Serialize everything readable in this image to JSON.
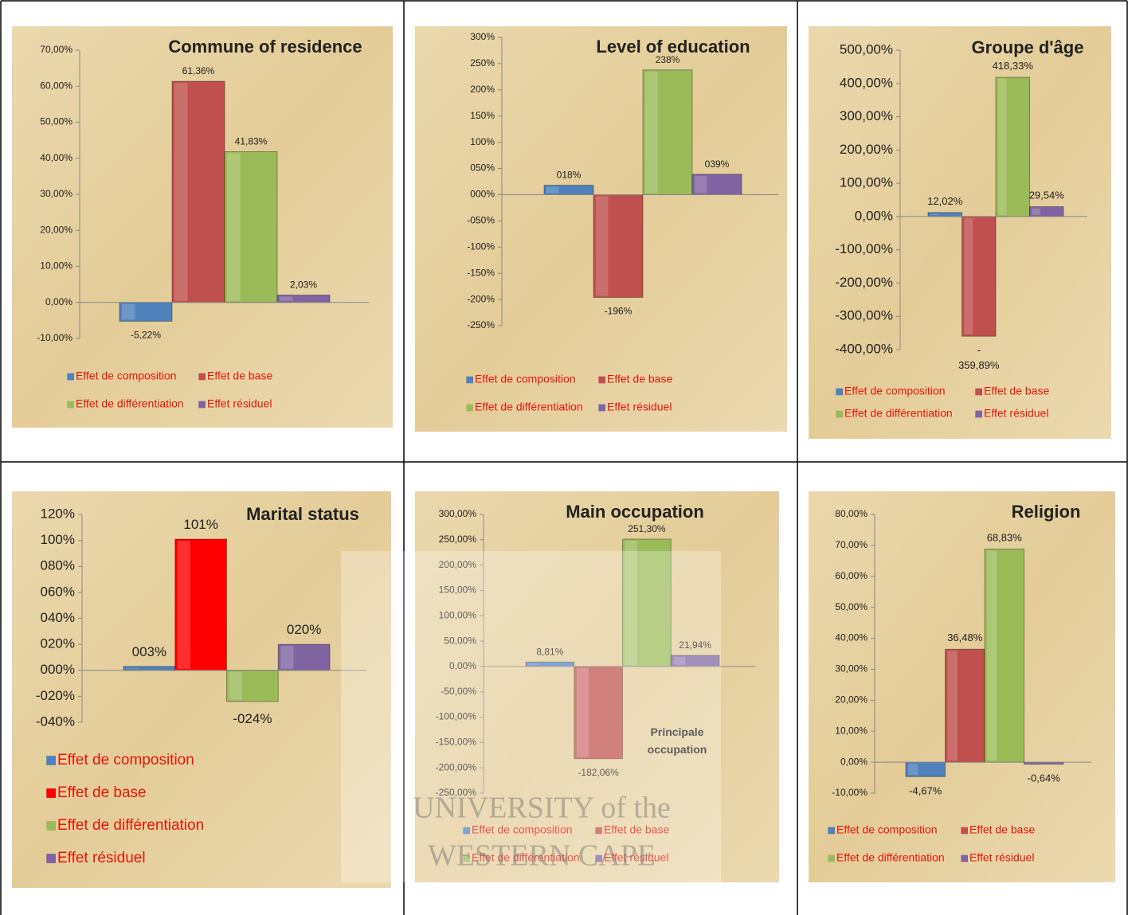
{
  "chart_data": [
    {
      "type": "bar",
      "title": "Commune of residence",
      "categories": [
        null
      ],
      "legend": "bottom",
      "ylim": [
        -10,
        70
      ],
      "yticks": [
        {
          "value": -10,
          "label": "-10,00%"
        },
        {
          "value": 0,
          "label": "0,00%"
        },
        {
          "value": 10,
          "label": "10,00%"
        },
        {
          "value": 20,
          "label": "20,00%"
        },
        {
          "value": 30,
          "label": "30,00%"
        },
        {
          "value": 40,
          "label": "40,00%"
        },
        {
          "value": 50,
          "label": "50,00%"
        },
        {
          "value": 60,
          "label": "60,00%"
        },
        {
          "value": 70,
          "label": "70,00%"
        }
      ],
      "series": [
        {
          "name": "Effet de composition",
          "color": "#4f81bd",
          "values": [
            -5.22
          ],
          "value_labels": [
            "-5,22%"
          ]
        },
        {
          "name": "Effet de base",
          "color": "#c0504d",
          "values": [
            61.36
          ],
          "value_labels": [
            "61,36%"
          ]
        },
        {
          "name": "Effet de différentiation",
          "color": "#9bbb59",
          "values": [
            41.83
          ],
          "value_labels": [
            "41,83%"
          ]
        },
        {
          "name": "Effet résiduel",
          "color": "#8064a2",
          "values": [
            2.03
          ],
          "value_labels": [
            "2,03%"
          ]
        }
      ]
    },
    {
      "type": "bar",
      "title": "Level of education",
      "categories": [
        null
      ],
      "legend": "bottom",
      "ylim": [
        -250,
        300
      ],
      "yticks": [
        {
          "value": -250,
          "label": "-250%"
        },
        {
          "value": -200,
          "label": "-200%"
        },
        {
          "value": -150,
          "label": "-150%"
        },
        {
          "value": -100,
          "label": "-100%"
        },
        {
          "value": -50,
          "label": "-050%"
        },
        {
          "value": 0,
          "label": "000%"
        },
        {
          "value": 50,
          "label": "050%"
        },
        {
          "value": 100,
          "label": "100%"
        },
        {
          "value": 150,
          "label": "150%"
        },
        {
          "value": 200,
          "label": "200%"
        },
        {
          "value": 250,
          "label": "250%"
        },
        {
          "value": 300,
          "label": "300%"
        }
      ],
      "series": [
        {
          "name": "Effet de composition",
          "color": "#4f81bd",
          "values": [
            18
          ],
          "value_labels": [
            "018%"
          ]
        },
        {
          "name": "Effet de base",
          "color": "#c0504d",
          "values": [
            -196
          ],
          "value_labels": [
            "-196%"
          ]
        },
        {
          "name": "Effet de différentiation",
          "color": "#9bbb59",
          "values": [
            238
          ],
          "value_labels": [
            "238%"
          ]
        },
        {
          "name": "Effet résiduel",
          "color": "#8064a2",
          "values": [
            39
          ],
          "value_labels": [
            "039%"
          ]
        }
      ]
    },
    {
      "type": "bar",
      "title": "Groupe d'âge",
      "categories": [
        null
      ],
      "legend": "bottom",
      "ylim": [
        -400,
        500
      ],
      "yticks": [
        {
          "value": -400,
          "label": "-400,00%"
        },
        {
          "value": -300,
          "label": "-300,00%"
        },
        {
          "value": -200,
          "label": "-200,00%"
        },
        {
          "value": -100,
          "label": "-100,00%"
        },
        {
          "value": 0,
          "label": "0,00%"
        },
        {
          "value": 100,
          "label": "100,00%"
        },
        {
          "value": 200,
          "label": "200,00%"
        },
        {
          "value": 300,
          "label": "300,00%"
        },
        {
          "value": 400,
          "label": "400,00%"
        },
        {
          "value": 500,
          "label": "500,00%"
        }
      ],
      "series": [
        {
          "name": "Effet de composition",
          "color": "#4f81bd",
          "values": [
            12.02
          ],
          "value_labels": [
            "12,02%"
          ]
        },
        {
          "name": "Effet de base",
          "color": "#c0504d",
          "values": [
            -359.89
          ],
          "value_labels": [
            "-\n359,89%"
          ]
        },
        {
          "name": "Effet de différentiation",
          "color": "#9bbb59",
          "values": [
            418.33
          ],
          "value_labels": [
            "418,33%"
          ]
        },
        {
          "name": "Effet résiduel",
          "color": "#8064a2",
          "values": [
            29.54
          ],
          "value_labels": [
            "29,54%"
          ]
        }
      ]
    },
    {
      "type": "bar",
      "title": "Marital status",
      "categories": [
        null
      ],
      "legend": "bottom",
      "ylim": [
        -40,
        120
      ],
      "yticks": [
        {
          "value": -40,
          "label": "-040%"
        },
        {
          "value": -20,
          "label": "-020%"
        },
        {
          "value": 0,
          "label": "000%"
        },
        {
          "value": 20,
          "label": "020%"
        },
        {
          "value": 40,
          "label": "040%"
        },
        {
          "value": 60,
          "label": "060%"
        },
        {
          "value": 80,
          "label": "080%"
        },
        {
          "value": 100,
          "label": "100%"
        },
        {
          "value": 120,
          "label": "120%"
        }
      ],
      "series": [
        {
          "name": "Effet de composition",
          "color": "#4f81bd",
          "values": [
            3
          ],
          "value_labels": [
            "003%"
          ]
        },
        {
          "name": "Effet de base",
          "color": "#ff0000",
          "values": [
            101
          ],
          "value_labels": [
            "101%"
          ]
        },
        {
          "name": "Effet de différentiation",
          "color": "#9bbb59",
          "values": [
            -24
          ],
          "value_labels": [
            "-024%"
          ]
        },
        {
          "name": "Effet résiduel",
          "color": "#8064a2",
          "values": [
            20
          ],
          "value_labels": [
            "020%"
          ]
        }
      ]
    },
    {
      "type": "bar",
      "title": "Main occupation",
      "categories": [
        null
      ],
      "legend": "bottom",
      "annotation": "Principale\noccupation",
      "ylim": [
        -250,
        300
      ],
      "yticks": [
        {
          "value": -250,
          "label": "-250,00%"
        },
        {
          "value": -200,
          "label": "-200,00%"
        },
        {
          "value": -150,
          "label": "-150,00%"
        },
        {
          "value": -100,
          "label": "-100,00%"
        },
        {
          "value": -50,
          "label": "-50,00%"
        },
        {
          "value": 0,
          "label": "0,00%"
        },
        {
          "value": 50,
          "label": "50,00%"
        },
        {
          "value": 100,
          "label": "100,00%"
        },
        {
          "value": 150,
          "label": "150,00%"
        },
        {
          "value": 200,
          "label": "200,00%"
        },
        {
          "value": 250,
          "label": "250,00%"
        },
        {
          "value": 300,
          "label": "300,00%"
        }
      ],
      "series": [
        {
          "name": "Effet de composition",
          "color": "#4f81bd",
          "values": [
            8.81
          ],
          "value_labels": [
            "8,81%"
          ]
        },
        {
          "name": "Effet de base",
          "color": "#c0504d",
          "values": [
            -182.06
          ],
          "value_labels": [
            "-182,06%"
          ]
        },
        {
          "name": "Effet de différentiation",
          "color": "#9bbb59",
          "values": [
            251.3
          ],
          "value_labels": [
            "251,30%"
          ]
        },
        {
          "name": "Effet résiduel",
          "color": "#8064a2",
          "values": [
            21.94
          ],
          "value_labels": [
            "21,94%"
          ]
        }
      ]
    },
    {
      "type": "bar",
      "title": "Religion",
      "categories": [
        null
      ],
      "legend": "bottom",
      "ylim": [
        -10,
        80
      ],
      "yticks": [
        {
          "value": -10,
          "label": "-10,00%"
        },
        {
          "value": 0,
          "label": "0,00%"
        },
        {
          "value": 10,
          "label": "10,00%"
        },
        {
          "value": 20,
          "label": "20,00%"
        },
        {
          "value": 30,
          "label": "30,00%"
        },
        {
          "value": 40,
          "label": "40,00%"
        },
        {
          "value": 50,
          "label": "50,00%"
        },
        {
          "value": 60,
          "label": "60,00%"
        },
        {
          "value": 70,
          "label": "70,00%"
        },
        {
          "value": 80,
          "label": "80,00%"
        }
      ],
      "series": [
        {
          "name": "Effet de composition",
          "color": "#4f81bd",
          "values": [
            -4.67
          ],
          "value_labels": [
            "-4,67%"
          ]
        },
        {
          "name": "Effet de base",
          "color": "#c0504d",
          "values": [
            36.48
          ],
          "value_labels": [
            "36,48%"
          ]
        },
        {
          "name": "Effet de différentiation",
          "color": "#9bbb59",
          "values": [
            68.83
          ],
          "value_labels": [
            "68,83%"
          ]
        },
        {
          "name": "Effet résiduel",
          "color": "#8064a2",
          "values": [
            -0.64
          ],
          "value_labels": [
            "-0,64%"
          ]
        }
      ]
    }
  ],
  "watermark": [
    "UNIVERSITY of the",
    "WESTERN CAPE"
  ]
}
